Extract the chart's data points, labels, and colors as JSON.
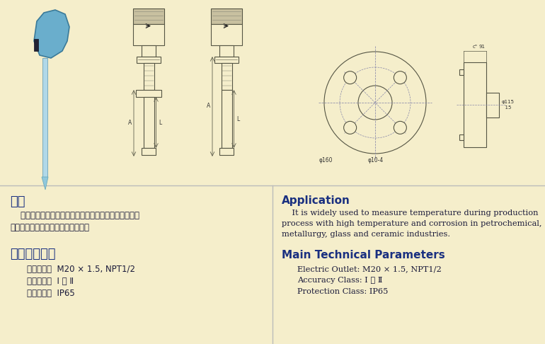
{
  "background_color": "#f5eecb",
  "divider_color": "#bbbbbb",
  "title_cn": "应用",
  "title_cn2": "主要技术参数",
  "title_en": "Application",
  "title_en2": "Main Technical Parameters",
  "title_color": "#1a3080",
  "body_color": "#1a1a3a",
  "desc_cn_line1": "    适用于各种生产过程中高温、腐蚀性场合，广泛应用石",
  "desc_cn_line2": "油化工、冶炼玻璃及陶瓷工业测温。",
  "desc_en_line1": "    It is widely used to measure temperature during production",
  "desc_en_line2": "process with high temperature and corrosion in petrochemical,",
  "desc_en_line3": "metallurgy, glass and ceramic industries.",
  "param_cn": [
    "电气出口：  M20 × 1.5, NPT1/2",
    "精度等级：  Ⅰ 、 Ⅱ",
    "防护等级：  IP65"
  ],
  "param_en": [
    "Electric Outlet: M20 × 1.5, NPT1/2",
    "Accuracy Class: Ⅰ 、 Ⅱ",
    "Protection Class: IP65"
  ],
  "line_color": "#555544",
  "center_line_color": "#8888aa",
  "dim_color": "#333333",
  "photo_head_color": "#6aaec8",
  "photo_stem_color": "#b0d8e8"
}
